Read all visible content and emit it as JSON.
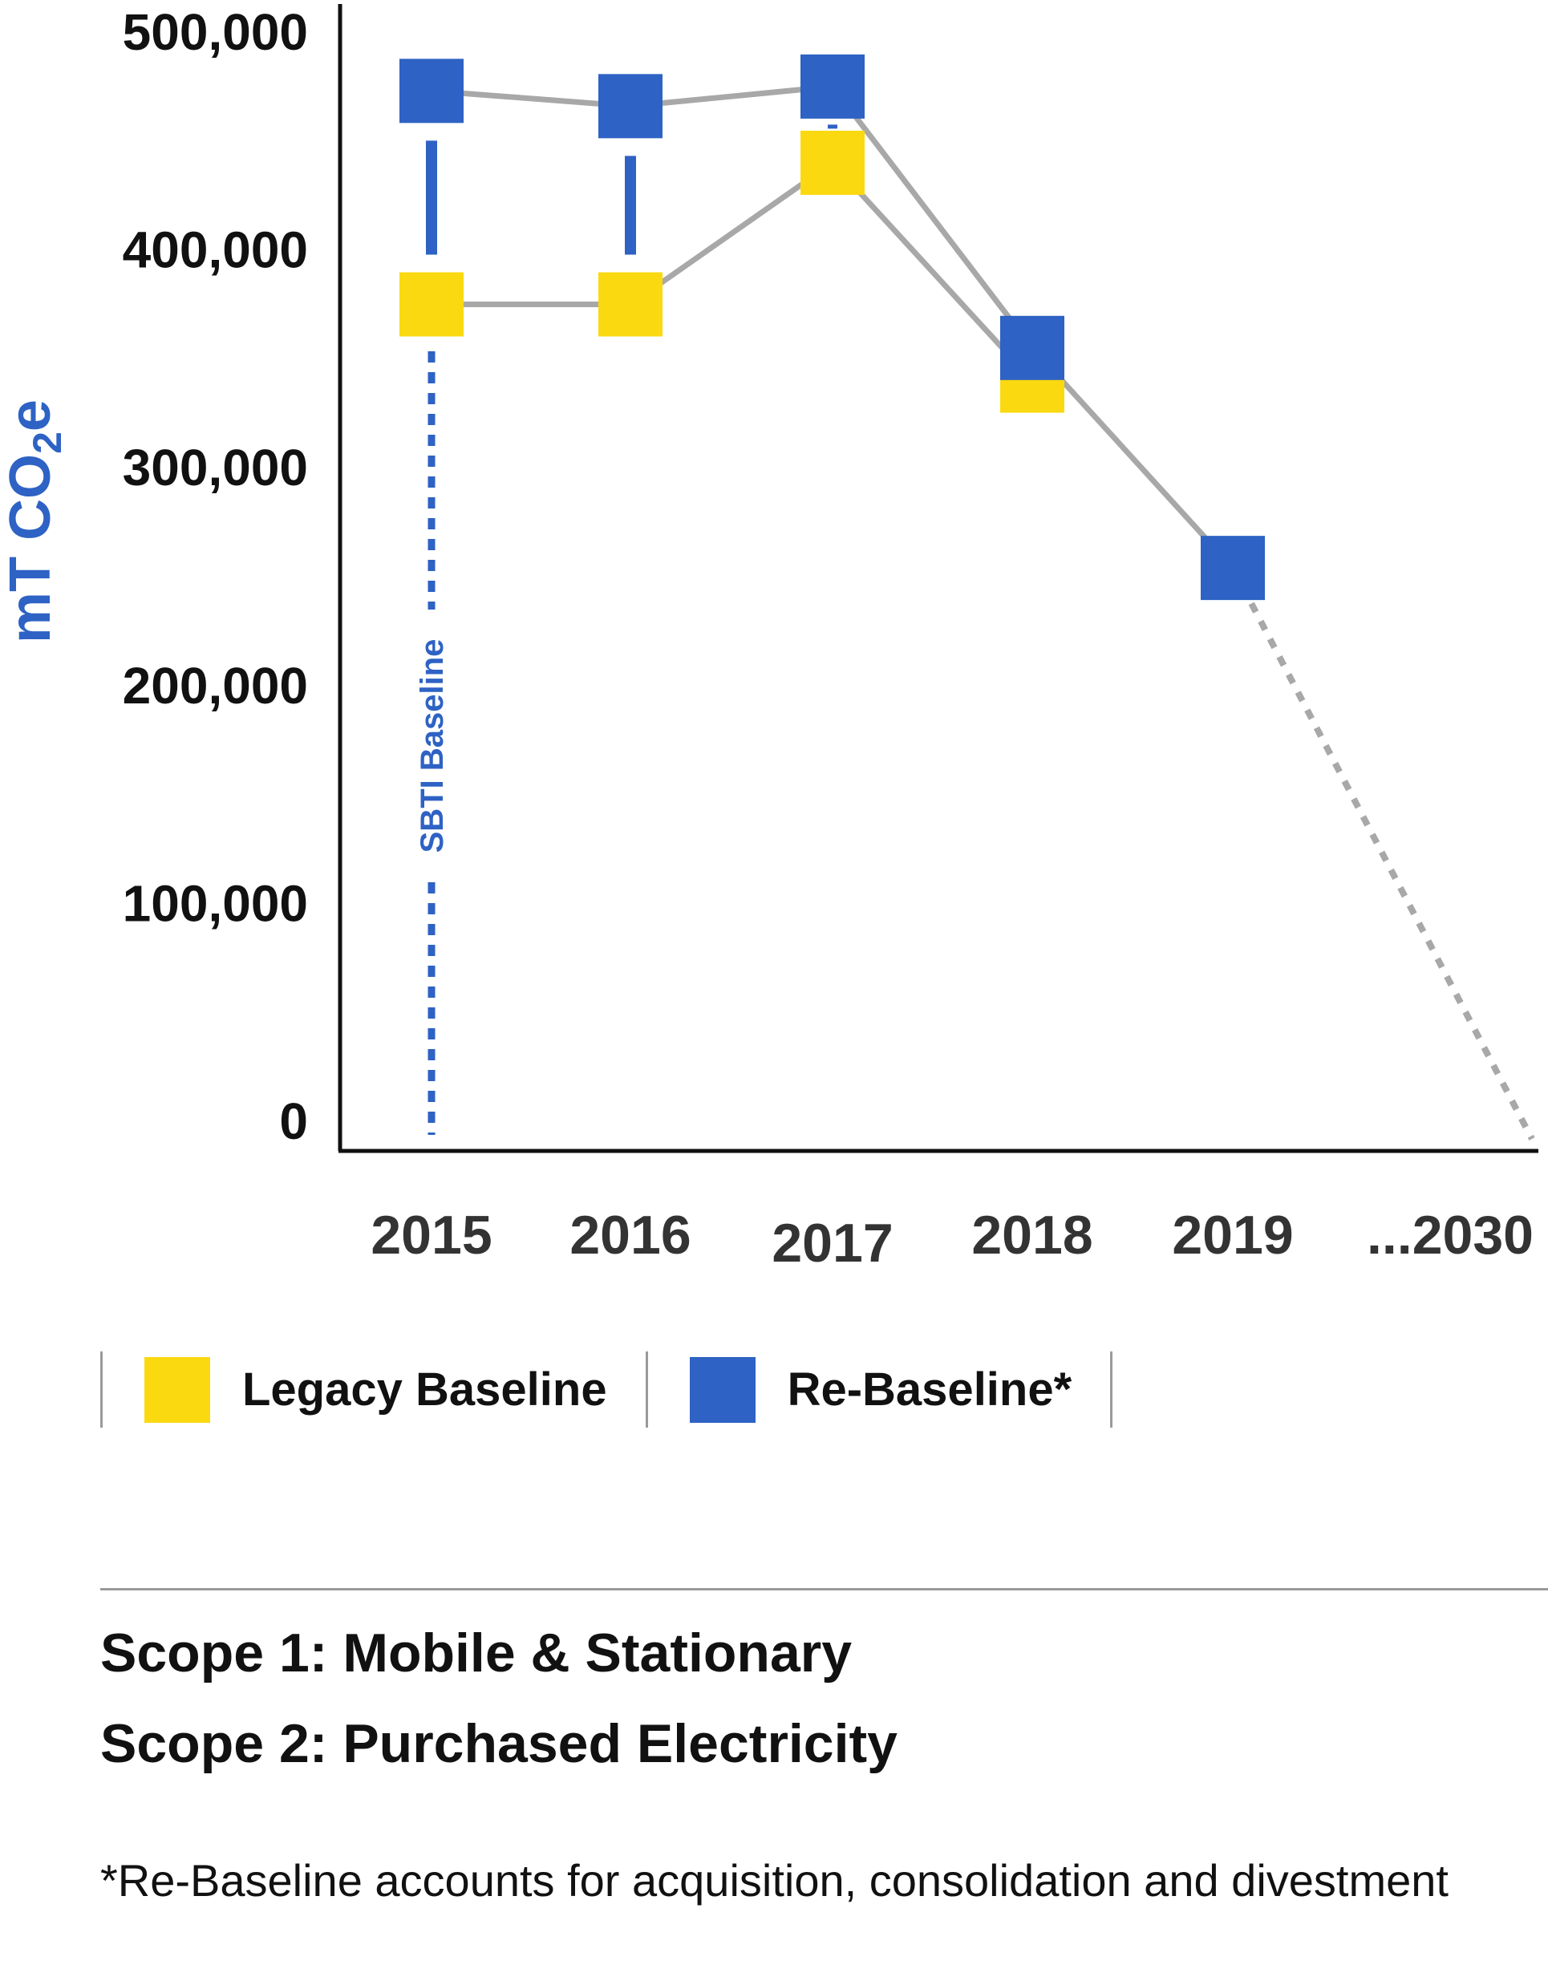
{
  "chart_data": {
    "type": "line",
    "ylabel_main": "mT CO",
    "ylabel_sub": "2",
    "ylabel_tail": "e",
    "ylim": [
      0,
      500000
    ],
    "yticks": [
      {
        "value": 500000,
        "label": "500,000"
      },
      {
        "value": 400000,
        "label": "400,000"
      },
      {
        "value": 300000,
        "label": "300,000"
      },
      {
        "value": 200000,
        "label": "200,000"
      },
      {
        "value": 100000,
        "label": "100,000"
      },
      {
        "value": 0,
        "label": "0"
      }
    ],
    "categories": [
      "2015",
      "2016",
      "2017",
      "2018",
      "2019",
      "...2030"
    ],
    "series": [
      {
        "name": "Legacy Baseline",
        "color": "#fbd910",
        "marker": "square",
        "values": [
          375000,
          375000,
          440000,
          340000,
          null,
          null
        ]
      },
      {
        "name": "Re-Baseline*",
        "color": "#2e62c4",
        "marker": "square",
        "values": [
          473000,
          466000,
          475000,
          355000,
          254000,
          null
        ]
      }
    ],
    "projection": {
      "from_category": "2019",
      "to_category": "...2030",
      "from_value": 254000,
      "to_value": 0,
      "style": "dotted",
      "color": "#a8a8a8"
    },
    "annotations": [
      {
        "text": "SBTI Baseline",
        "category": "2015",
        "style": "dashed vertical line",
        "color": "#2e62c4"
      }
    ],
    "grid": false,
    "legend_position": "bottom"
  },
  "legend": {
    "items": [
      {
        "label": "Legacy Baseline",
        "color": "#fbd910"
      },
      {
        "label": "Re-Baseline*",
        "color": "#2e62c4"
      }
    ]
  },
  "scope": {
    "line1": "Scope 1: Mobile & Stationary",
    "line2": "Scope 2: Purchased Electricity"
  },
  "footnote": "*Re-Baseline accounts for acquisition, consolidation and divestment"
}
